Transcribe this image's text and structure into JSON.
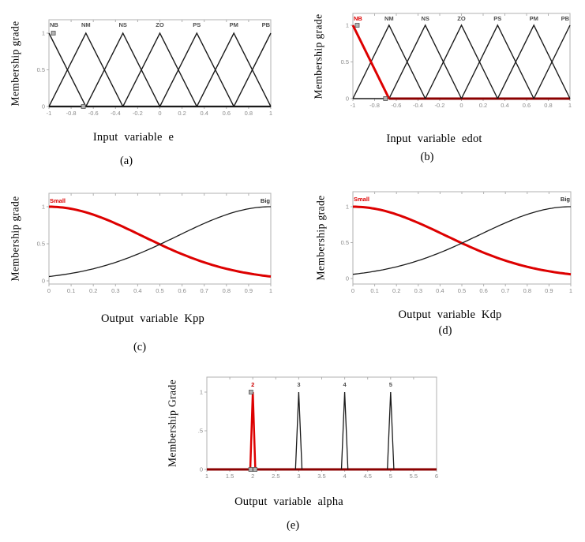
{
  "figure": {
    "background": "#ffffff",
    "description": "Fuzzy membership function plots"
  },
  "colors": {
    "red": "#dd0000",
    "dark_red_baseline": "#8b0000",
    "curve_black": "#1a1a1a",
    "frame_gray": "#b0b0b0",
    "tick_label_gray": "#8a8a8a",
    "mf_label_gray": "#4d4d4d",
    "marker_fill": "#b3b3b3",
    "marker_stroke": "#555555"
  },
  "chart_data": [
    {
      "id": "a",
      "type": "line",
      "title": "",
      "xlabel": "Input variable e",
      "ylabel": "Membership grade",
      "caption": "(a)",
      "xlim": [
        -1,
        1
      ],
      "ylim": [
        0,
        1.2
      ],
      "grid": false,
      "legend": "none",
      "xticks": [
        -1,
        -0.8,
        -0.6,
        -0.4,
        -0.2,
        0,
        0.2,
        0.4,
        0.6,
        0.8,
        1
      ],
      "xtick_labels": [
        "-1",
        "-0.8",
        "-0.6",
        "-0.4",
        "-0.2",
        "0",
        "0.2",
        "0.4",
        "0.6",
        "0.8",
        "1"
      ],
      "yticks": [
        0,
        0.5,
        1
      ],
      "ytick_labels": [
        "0",
        "0.5",
        "1"
      ],
      "series": [
        {
          "name": "NB",
          "color": "#1a1a1a",
          "width": 1.4,
          "points": [
            [
              -1,
              1
            ],
            [
              -0.6667,
              0
            ]
          ]
        },
        {
          "name": "NM",
          "color": "#1a1a1a",
          "width": 1.4,
          "points": [
            [
              -1,
              0
            ],
            [
              -0.6667,
              1
            ],
            [
              -0.3333,
              0
            ]
          ]
        },
        {
          "name": "NS",
          "color": "#1a1a1a",
          "width": 1.4,
          "points": [
            [
              -0.6667,
              0
            ],
            [
              -0.3333,
              1
            ],
            [
              0,
              0
            ]
          ]
        },
        {
          "name": "ZO",
          "color": "#1a1a1a",
          "width": 1.4,
          "points": [
            [
              -0.3333,
              0
            ],
            [
              0,
              1
            ],
            [
              0.3333,
              0
            ]
          ]
        },
        {
          "name": "PS",
          "color": "#1a1a1a",
          "width": 1.4,
          "points": [
            [
              0,
              0
            ],
            [
              0.3333,
              1
            ],
            [
              0.6667,
              0
            ]
          ]
        },
        {
          "name": "PM",
          "color": "#1a1a1a",
          "width": 1.4,
          "points": [
            [
              0.3333,
              0
            ],
            [
              0.6667,
              1
            ],
            [
              1,
              0
            ]
          ]
        },
        {
          "name": "PB",
          "color": "#1a1a1a",
          "width": 1.4,
          "points": [
            [
              0.6667,
              0
            ],
            [
              1,
              1
            ]
          ]
        }
      ],
      "baseline": [
        {
          "from": -1,
          "to": 1,
          "color": "#1a1a1a",
          "width": 2.2
        }
      ],
      "mf_labels": [
        {
          "text": "NB",
          "x": -1,
          "align": "start",
          "color": "#4d4d4d"
        },
        {
          "text": "NM",
          "x": -0.6667,
          "align": "middle",
          "color": "#4d4d4d"
        },
        {
          "text": "NS",
          "x": -0.3333,
          "align": "middle",
          "color": "#4d4d4d"
        },
        {
          "text": "ZO",
          "x": 0,
          "align": "middle",
          "color": "#4d4d4d"
        },
        {
          "text": "PS",
          "x": 0.3333,
          "align": "middle",
          "color": "#4d4d4d"
        },
        {
          "text": "PM",
          "x": 0.6667,
          "align": "middle",
          "color": "#4d4d4d"
        },
        {
          "text": "PB",
          "x": 1,
          "align": "end",
          "color": "#4d4d4d"
        }
      ],
      "markers": [
        {
          "x": -0.96,
          "y": 1
        },
        {
          "x": -0.69,
          "y": 0
        }
      ]
    },
    {
      "id": "b",
      "type": "line",
      "title": "",
      "xlabel": "Input variable edot",
      "ylabel": "Membership grade",
      "caption": "(b)",
      "xlim": [
        -1,
        1
      ],
      "ylim": [
        0,
        1.2
      ],
      "grid": false,
      "legend": "none",
      "xticks": [
        -1,
        -0.8,
        -0.6,
        -0.4,
        -0.2,
        0,
        0.2,
        0.4,
        0.6,
        0.8,
        1
      ],
      "xtick_labels": [
        "-1",
        "-0.8",
        "-0.6",
        "-0.4",
        "-0.2",
        "0",
        "0.2",
        "0.4",
        "0.6",
        "0.8",
        "1"
      ],
      "yticks": [
        0,
        0.5,
        1
      ],
      "ytick_labels": [
        "0",
        "0.5",
        "1"
      ],
      "series": [
        {
          "name": "NM",
          "color": "#1a1a1a",
          "width": 1.4,
          "points": [
            [
              -1,
              0
            ],
            [
              -0.6667,
              1
            ],
            [
              -0.3333,
              0
            ]
          ]
        },
        {
          "name": "NS",
          "color": "#1a1a1a",
          "width": 1.4,
          "points": [
            [
              -0.6667,
              0
            ],
            [
              -0.3333,
              1
            ],
            [
              0,
              0
            ]
          ]
        },
        {
          "name": "ZO",
          "color": "#1a1a1a",
          "width": 1.4,
          "points": [
            [
              -0.3333,
              0
            ],
            [
              0,
              1
            ],
            [
              0.3333,
              0
            ]
          ]
        },
        {
          "name": "PS",
          "color": "#1a1a1a",
          "width": 1.4,
          "points": [
            [
              0,
              0
            ],
            [
              0.3333,
              1
            ],
            [
              0.6667,
              0
            ]
          ]
        },
        {
          "name": "PM",
          "color": "#1a1a1a",
          "width": 1.4,
          "points": [
            [
              0.3333,
              0
            ],
            [
              0.6667,
              1
            ],
            [
              1,
              0
            ]
          ]
        },
        {
          "name": "PB",
          "color": "#1a1a1a",
          "width": 1.4,
          "points": [
            [
              0.6667,
              0
            ],
            [
              1,
              1
            ]
          ]
        },
        {
          "name": "NB",
          "color": "#dd0000",
          "width": 3,
          "points": [
            [
              -1,
              1
            ],
            [
              -0.6667,
              0
            ]
          ]
        }
      ],
      "baseline": [
        {
          "from": -1,
          "to": -0.6667,
          "color": "#1a1a1a",
          "width": 1.5
        },
        {
          "from": -0.6667,
          "to": 1,
          "color": "#8b0000",
          "width": 3
        }
      ],
      "mf_labels": [
        {
          "text": "NB",
          "x": -1,
          "align": "start",
          "color": "#dd0000"
        },
        {
          "text": "NM",
          "x": -0.6667,
          "align": "middle",
          "color": "#4d4d4d"
        },
        {
          "text": "NS",
          "x": -0.3333,
          "align": "middle",
          "color": "#4d4d4d"
        },
        {
          "text": "ZO",
          "x": 0,
          "align": "middle",
          "color": "#4d4d4d"
        },
        {
          "text": "PS",
          "x": 0.3333,
          "align": "middle",
          "color": "#4d4d4d"
        },
        {
          "text": "PM",
          "x": 0.6667,
          "align": "middle",
          "color": "#4d4d4d"
        },
        {
          "text": "PB",
          "x": 1,
          "align": "end",
          "color": "#4d4d4d"
        }
      ],
      "markers": [
        {
          "x": -0.96,
          "y": 1
        },
        {
          "x": -0.7,
          "y": 0
        }
      ]
    },
    {
      "id": "c",
      "type": "line",
      "title": "",
      "xlabel": "Output variable Kpp",
      "ylabel": "Membership grade",
      "caption": "(c)",
      "xlim": [
        0,
        1
      ],
      "ylim": [
        0,
        1.15
      ],
      "grid": false,
      "legend": "none",
      "xticks": [
        0,
        0.1,
        0.2,
        0.3,
        0.4,
        0.5,
        0.6,
        0.7,
        0.8,
        0.9,
        1
      ],
      "xtick_labels": [
        "0",
        "0.1",
        "0.2",
        "0.3",
        "0.4",
        "0.5",
        "0.6",
        "0.7",
        "0.8",
        "0.9",
        "1"
      ],
      "yticks": [
        0,
        0.5,
        1
      ],
      "ytick_labels": [
        "0",
        "0.5",
        "1"
      ],
      "series": [
        {
          "name": "Small",
          "color": "#dd0000",
          "width": 3,
          "gaussian": {
            "mean": 0,
            "sigma": 0.42
          },
          "points": [
            [
              0,
              1
            ],
            [
              0.25,
              0.84
            ],
            [
              0.5,
              0.5
            ],
            [
              0.75,
              0.2
            ],
            [
              1,
              0.06
            ]
          ]
        },
        {
          "name": "Big",
          "color": "#1a1a1a",
          "width": 1.3,
          "gaussian": {
            "mean": 1,
            "sigma": 0.42
          },
          "points": [
            [
              0,
              0.06
            ],
            [
              0.25,
              0.2
            ],
            [
              0.5,
              0.5
            ],
            [
              0.75,
              0.84
            ],
            [
              1,
              1
            ]
          ]
        }
      ],
      "baseline": [],
      "mf_labels": [
        {
          "text": "Small",
          "x": 0,
          "align": "start",
          "color": "#dd0000"
        },
        {
          "text": "Big",
          "x": 1,
          "align": "end",
          "color": "#333333"
        }
      ],
      "markers": []
    },
    {
      "id": "d",
      "type": "line",
      "title": "",
      "xlabel": "Output variable Kdp",
      "ylabel": "Membership grade",
      "caption": "(d)",
      "xlim": [
        0,
        1
      ],
      "ylim": [
        0,
        1.15
      ],
      "grid": false,
      "legend": "none",
      "xticks": [
        0,
        0.1,
        0.2,
        0.3,
        0.4,
        0.5,
        0.6,
        0.7,
        0.8,
        0.9,
        1
      ],
      "xtick_labels": [
        "0",
        "0.1",
        "0.2",
        "0.3",
        "0.4",
        "0.5",
        "0.6",
        "0.7",
        "0.8",
        "0.9",
        "1"
      ],
      "yticks": [
        0,
        0.5,
        1
      ],
      "ytick_labels": [
        "0",
        "0.5",
        "1"
      ],
      "series": [
        {
          "name": "Small",
          "color": "#dd0000",
          "width": 3,
          "gaussian": {
            "mean": 0,
            "sigma": 0.42
          },
          "points": [
            [
              0,
              1
            ],
            [
              0.25,
              0.84
            ],
            [
              0.5,
              0.5
            ],
            [
              0.75,
              0.2
            ],
            [
              1,
              0.06
            ]
          ]
        },
        {
          "name": "Big",
          "color": "#1a1a1a",
          "width": 1.3,
          "gaussian": {
            "mean": 1,
            "sigma": 0.42
          },
          "points": [
            [
              0,
              0.06
            ],
            [
              0.25,
              0.2
            ],
            [
              0.5,
              0.5
            ],
            [
              0.75,
              0.84
            ],
            [
              1,
              1
            ]
          ]
        }
      ],
      "baseline": [],
      "mf_labels": [
        {
          "text": "Small",
          "x": 0,
          "align": "start",
          "color": "#dd0000"
        },
        {
          "text": "Big",
          "x": 1,
          "align": "end",
          "color": "#333333"
        }
      ],
      "markers": []
    },
    {
      "id": "e",
      "type": "line",
      "title": "",
      "xlabel": "Output variable alpha",
      "ylabel": "Membership Grade",
      "caption": "(e)",
      "xlim": [
        1,
        6
      ],
      "ylim": [
        0,
        1.2
      ],
      "grid": false,
      "legend": "none",
      "xticks": [
        1,
        1.5,
        2,
        2.5,
        3,
        3.5,
        4,
        4.5,
        5,
        5.5,
        6
      ],
      "xtick_labels": [
        "1",
        "1.5",
        "2",
        "2.5",
        "3",
        "3.5",
        "4",
        "4.5",
        "5",
        "5.5",
        "6"
      ],
      "yticks": [
        0,
        0.5,
        1
      ],
      "ytick_labels": [
        "0",
        ".5",
        "1"
      ],
      "series": [
        {
          "name": "3",
          "color": "#1a1a1a",
          "width": 1.3,
          "points": [
            [
              2.93,
              0
            ],
            [
              3,
              1
            ],
            [
              3.07,
              0
            ]
          ]
        },
        {
          "name": "4",
          "color": "#1a1a1a",
          "width": 1.3,
          "points": [
            [
              3.93,
              0
            ],
            [
              4,
              1
            ],
            [
              4.07,
              0
            ]
          ]
        },
        {
          "name": "5",
          "color": "#1a1a1a",
          "width": 1.3,
          "points": [
            [
              4.93,
              0
            ],
            [
              5,
              1
            ],
            [
              5.07,
              0
            ]
          ]
        },
        {
          "name": "2",
          "color": "#dd0000",
          "width": 2.5,
          "points": [
            [
              1.945,
              0
            ],
            [
              2,
              1
            ],
            [
              2.055,
              0
            ]
          ]
        }
      ],
      "baseline": [
        {
          "from": 1,
          "to": 6,
          "color": "#8b0000",
          "width": 3
        }
      ],
      "mf_labels": [
        {
          "text": "2",
          "x": 2,
          "align": "middle",
          "color": "#cc0000"
        },
        {
          "text": "3",
          "x": 3,
          "align": "middle",
          "color": "#4d4d4d"
        },
        {
          "text": "4",
          "x": 4,
          "align": "middle",
          "color": "#4d4d4d"
        },
        {
          "text": "5",
          "x": 5,
          "align": "middle",
          "color": "#4d4d4d"
        }
      ],
      "markers": [
        {
          "x": 1.96,
          "y": 1
        },
        {
          "x": 1.955,
          "y": 0
        },
        {
          "x": 2.05,
          "y": 0
        }
      ]
    }
  ]
}
